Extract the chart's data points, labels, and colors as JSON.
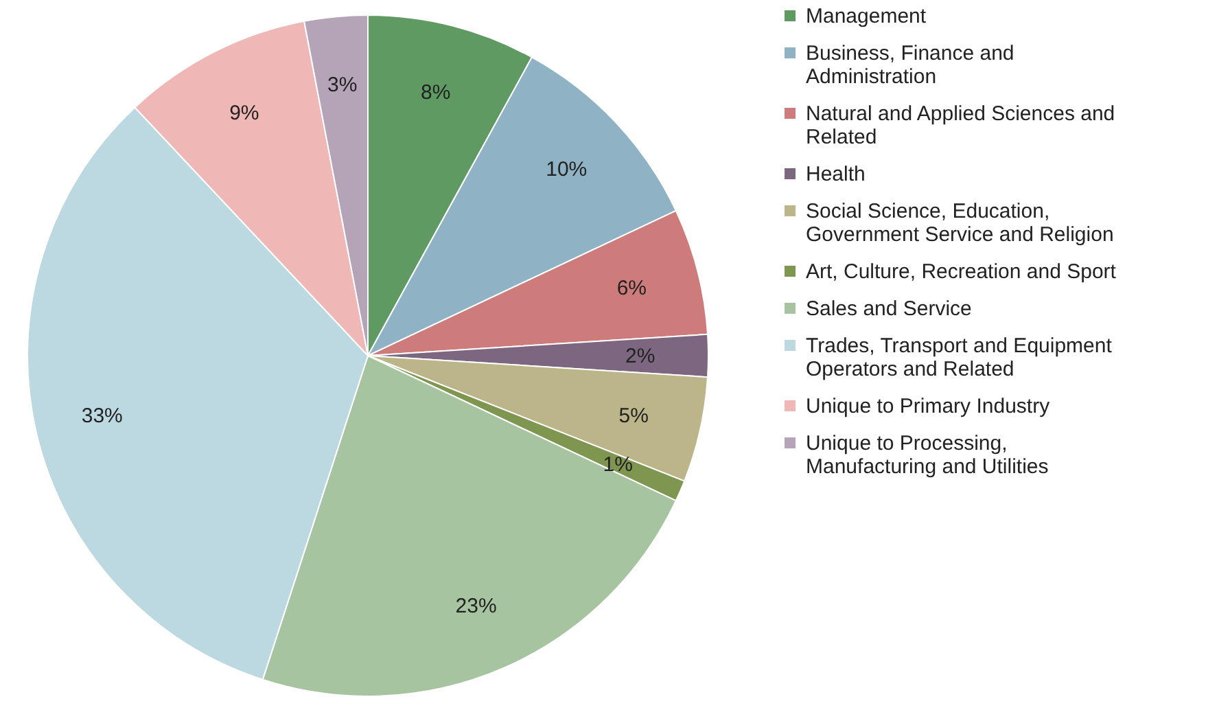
{
  "chart_data": {
    "type": "pie",
    "categories": [
      "Management",
      "Business, Finance and Administration",
      "Natural and Applied Sciences and Related",
      "Health",
      "Social Science, Education, Government Service and Religion",
      "Art, Culture, Recreation and Sport",
      "Sales and Service",
      "Trades, Transport and Equipment Operators and Related",
      "Unique to Primary Industry",
      "Unique to Processing, Manufacturing and Utilities"
    ],
    "values": [
      8,
      10,
      6,
      2,
      5,
      1,
      23,
      33,
      9,
      3
    ],
    "colors": [
      "#5f9a62",
      "#8fb3c4",
      "#cd7b7b",
      "#7d6780",
      "#bcb58a",
      "#7f9651",
      "#a7c4a0",
      "#bcd8e0",
      "#f0b7b7",
      "#b5a3b8"
    ],
    "value_labels": [
      "8%",
      "10%",
      "6%",
      "2%",
      "5%",
      "1%",
      "23%",
      "33%",
      "9%",
      "3%"
    ],
    "legend": "right"
  }
}
